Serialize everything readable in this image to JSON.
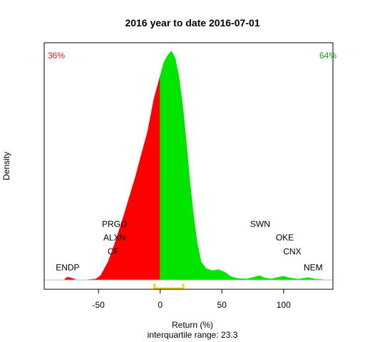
{
  "chart_data": {
    "type": "area",
    "title": "2016  year to date 2016-07-01",
    "xlabel": "Return (%)",
    "ylabel": "Density",
    "subtitle": "interquartile range: 23.3",
    "xlim": [
      -94,
      140
    ],
    "ylim": [
      0,
      1
    ],
    "x_ticks": [
      -50,
      0,
      50,
      100
    ],
    "grid": false,
    "negative_share": "36%",
    "positive_share": "64%",
    "colors": {
      "negative": "#ff0000",
      "positive": "#00e400",
      "iqr": "#ffd700",
      "negative_text": "#e31a1c",
      "positive_text": "#1a9a1a"
    },
    "iqr_range": [
      -4.6,
      18.7
    ],
    "density": [
      [
        -78,
        0
      ],
      [
        -75,
        0.012
      ],
      [
        -72,
        0.008
      ],
      [
        -68,
        0
      ],
      [
        -60,
        0
      ],
      [
        -52,
        0.004
      ],
      [
        -48,
        0.02
      ],
      [
        -42,
        0.08
      ],
      [
        -36,
        0.17
      ],
      [
        -30,
        0.27
      ],
      [
        -25,
        0.36
      ],
      [
        -20,
        0.45
      ],
      [
        -15,
        0.55
      ],
      [
        -10,
        0.65
      ],
      [
        -5,
        0.79
      ],
      [
        0,
        0.89
      ],
      [
        3,
        0.95
      ],
      [
        6,
        0.98
      ],
      [
        9,
        1.0
      ],
      [
        12,
        0.97
      ],
      [
        15,
        0.89
      ],
      [
        18,
        0.77
      ],
      [
        21,
        0.61
      ],
      [
        24,
        0.43
      ],
      [
        27,
        0.28
      ],
      [
        30,
        0.16
      ],
      [
        33,
        0.08
      ],
      [
        37,
        0.05
      ],
      [
        42,
        0.04
      ],
      [
        47,
        0.045
      ],
      [
        52,
        0.035
      ],
      [
        57,
        0.015
      ],
      [
        63,
        0.006
      ],
      [
        70,
        0.004
      ],
      [
        75,
        0.01
      ],
      [
        80,
        0.018
      ],
      [
        85,
        0.008
      ],
      [
        90,
        0.004
      ],
      [
        95,
        0.01
      ],
      [
        100,
        0.016
      ],
      [
        105,
        0.008
      ],
      [
        112,
        0.003
      ],
      [
        120,
        0.01
      ],
      [
        125,
        0.004
      ],
      [
        130,
        0.002
      ],
      [
        133,
        0
      ]
    ],
    "annotations": [
      {
        "label": "ENDP",
        "x": -75,
        "y": 0.055
      },
      {
        "label": "PRGO",
        "x": -37,
        "y": 0.245
      },
      {
        "label": "ALXN",
        "x": -37,
        "y": 0.185
      },
      {
        "label": "CF",
        "x": -38,
        "y": 0.125
      },
      {
        "label": "SWN",
        "x": 81,
        "y": 0.245
      },
      {
        "label": "OKE",
        "x": 101,
        "y": 0.185
      },
      {
        "label": "CNX",
        "x": 107,
        "y": 0.125
      },
      {
        "label": "NEM",
        "x": 124,
        "y": 0.055
      }
    ]
  }
}
